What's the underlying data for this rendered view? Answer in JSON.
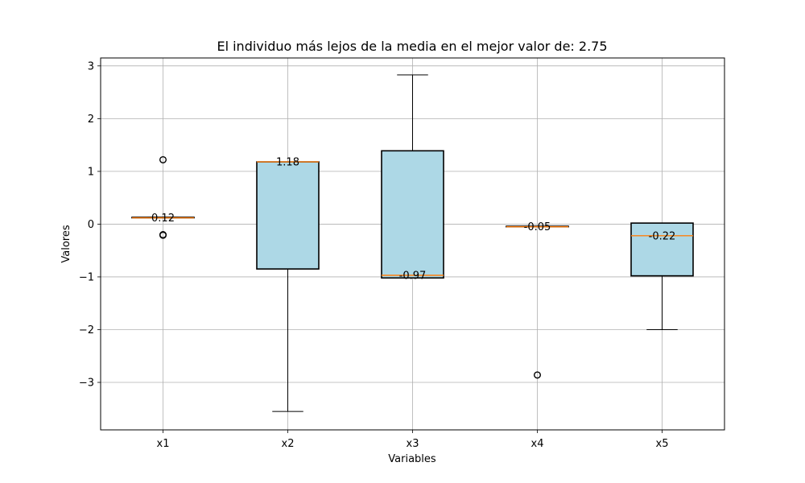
{
  "chart_data": {
    "type": "boxplot",
    "title": "El individuo más lejos de la media  en el mejor valor de: 2.75",
    "xlabel": "Variables",
    "ylabel": "Valores",
    "ylim": [
      -3.9,
      3.15
    ],
    "yticks": [
      -3,
      -2,
      -1,
      0,
      1,
      2,
      3
    ],
    "ytick_labels": [
      "−3",
      "−2",
      "−1",
      "0",
      "1",
      "2",
      "3"
    ],
    "grid": true,
    "colors": {
      "box_fill": "#add8e6",
      "box_edge": "#000000",
      "median": "#ff7f0e",
      "grid": "#b0b0b0"
    },
    "categories": [
      "x1",
      "x2",
      "x3",
      "x4",
      "x5"
    ],
    "boxes": [
      {
        "label": "x1",
        "whisker_low": 0.12,
        "q1": 0.12,
        "median": 0.12,
        "q3": 0.13,
        "whisker_high": 0.13,
        "outliers": [
          1.22,
          -0.2,
          -0.21
        ],
        "median_label": "0.12"
      },
      {
        "label": "x2",
        "whisker_low": -3.55,
        "q1": -0.85,
        "median": 1.18,
        "q3": 1.18,
        "whisker_high": 1.18,
        "outliers": [],
        "median_label": "1.18"
      },
      {
        "label": "x3",
        "whisker_low": -1.02,
        "q1": -1.02,
        "median": -0.97,
        "q3": 1.39,
        "whisker_high": 2.83,
        "outliers": [],
        "median_label": "-0.97"
      },
      {
        "label": "x4",
        "whisker_low": -0.05,
        "q1": -0.05,
        "median": -0.05,
        "q3": -0.04,
        "whisker_high": -0.04,
        "outliers": [
          -2.86
        ],
        "median_label": "-0.05"
      },
      {
        "label": "x5",
        "whisker_low": -2.0,
        "q1": -0.98,
        "median": -0.22,
        "q3": 0.02,
        "whisker_high": 0.02,
        "outliers": [],
        "median_label": "-0.22"
      }
    ]
  }
}
